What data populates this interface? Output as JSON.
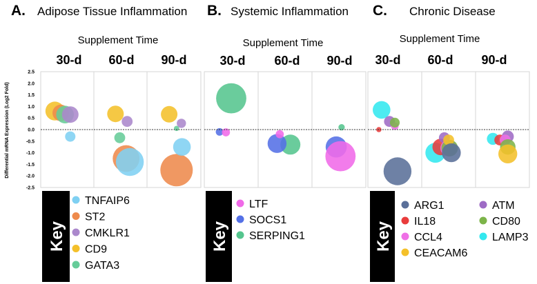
{
  "colors": {
    "TNFAIP6": "#7fd0f2",
    "ST2": "#ee8a4c",
    "CMKLR1": "#ab88cc",
    "CD9": "#f4c02a",
    "GATA3": "#66cc99",
    "LTF": "#f06ae8",
    "SOCS1": "#5470e6",
    "SERPING1": "#55c58e",
    "ARG1": "#5a6f99",
    "IL18": "#e93c3c",
    "CCL4": "#ef70e6",
    "CEACAM6": "#f4c02a",
    "ATM": "#9e6bc5",
    "CD80": "#7cb449",
    "LAMP3": "#33e8ef"
  },
  "key_label": "Key",
  "chart_data": [
    {
      "type": "scatter",
      "panel_letter": "A.",
      "title": "Adipose Tissue Inflammation",
      "xlabel": "Supplement Time",
      "categories": [
        "30-d",
        "60-d",
        "90-d"
      ],
      "ylabel": "Differential mRNA Expression (Log2 Fold)",
      "ylim": [
        -2.5,
        2.5
      ],
      "yticks": [
        "2.5",
        "2.0",
        "1.5",
        "1.0",
        "0.5",
        "0.0",
        "-0.5",
        "-1.0",
        "-1.5",
        "-2.0",
        "-2.5"
      ],
      "legend": [
        "TNFAIP6",
        "ST2",
        "CMKLR1",
        "CD9",
        "GATA3"
      ],
      "series": [
        {
          "name": "CD9",
          "points": [
            {
              "x": "30-d",
              "offset": -0.24,
              "y": 0.8,
              "size": 1.3
            },
            {
              "x": "60-d",
              "offset": -0.1,
              "y": 0.68,
              "size": 1.1
            },
            {
              "x": "90-d",
              "offset": -0.09,
              "y": 0.66,
              "size": 1.1
            }
          ]
        },
        {
          "name": "ST2",
          "points": [
            {
              "x": "30-d",
              "offset": -0.13,
              "y": 0.72,
              "size": 1.1
            },
            {
              "x": "60-d",
              "offset": 0.1,
              "y": -1.25,
              "size": 2.0
            },
            {
              "x": "90-d",
              "offset": 0.05,
              "y": -1.75,
              "size": 2.5
            }
          ]
        },
        {
          "name": "GATA3",
          "points": [
            {
              "x": "30-d",
              "offset": -0.05,
              "y": 0.65,
              "size": 1.2
            },
            {
              "x": "60-d",
              "offset": -0.02,
              "y": -0.35,
              "size": 0.6
            },
            {
              "x": "90-d",
              "offset": 0.05,
              "y": 0.05,
              "size": 0.1
            }
          ]
        },
        {
          "name": "CMKLR1",
          "points": [
            {
              "x": "30-d",
              "offset": 0.05,
              "y": 0.65,
              "size": 1.1
            },
            {
              "x": "60-d",
              "offset": 0.12,
              "y": 0.35,
              "size": 0.6
            },
            {
              "x": "90-d",
              "offset": 0.14,
              "y": 0.27,
              "size": 0.45
            }
          ]
        },
        {
          "name": "TNFAIP6",
          "points": [
            {
              "x": "30-d",
              "offset": 0.05,
              "y": -0.3,
              "size": 0.55
            },
            {
              "x": "60-d",
              "offset": 0.17,
              "y": -1.4,
              "size": 2.1
            },
            {
              "x": "90-d",
              "offset": 0.15,
              "y": -0.75,
              "size": 1.2
            }
          ]
        }
      ]
    },
    {
      "type": "scatter",
      "panel_letter": "B.",
      "title": "Systemic Inflammation",
      "xlabel": "Supplement Time",
      "categories": [
        "30-d",
        "60-d",
        "90-d"
      ],
      "ylim": [
        -2.5,
        2.5
      ],
      "legend": [
        "LTF",
        "SOCS1",
        "SERPING1"
      ],
      "series": [
        {
          "name": "SERPING1",
          "points": [
            {
              "x": "30-d",
              "offset": 0.0,
              "y": 1.35,
              "size": 2.3
            },
            {
              "x": "60-d",
              "offset": 0.1,
              "y": -0.65,
              "size": 1.4
            },
            {
              "x": "90-d",
              "offset": 0.05,
              "y": 0.1,
              "size": 0.2
            }
          ]
        },
        {
          "name": "SOCS1",
          "points": [
            {
              "x": "30-d",
              "offset": -0.22,
              "y": -0.1,
              "size": 0.3
            },
            {
              "x": "60-d",
              "offset": -0.15,
              "y": -0.6,
              "size": 1.3
            },
            {
              "x": "90-d",
              "offset": -0.05,
              "y": -0.75,
              "size": 1.5
            }
          ]
        },
        {
          "name": "LTF",
          "points": [
            {
              "x": "30-d",
              "offset": -0.1,
              "y": -0.12,
              "size": 0.35
            },
            {
              "x": "60-d",
              "offset": -0.1,
              "y": -0.2,
              "size": 0.35
            },
            {
              "x": "90-d",
              "offset": 0.03,
              "y": -1.15,
              "size": 2.3
            }
          ]
        }
      ]
    },
    {
      "type": "scatter",
      "panel_letter": "C.",
      "title": "Chronic Disease",
      "xlabel": "Supplement Time",
      "categories": [
        "30-d",
        "60-d",
        "90-d"
      ],
      "ylim": [
        -2.5,
        2.5
      ],
      "legend": [
        "ARG1",
        "IL18",
        "CCL4",
        "CEACAM6",
        "ATM",
        "CD80",
        "LAMP3"
      ],
      "series": [
        {
          "name": "LAMP3",
          "points": [
            {
              "x": "30-d",
              "offset": -0.25,
              "y": 0.85,
              "size": 1.2
            },
            {
              "x": "60-d",
              "offset": -0.25,
              "y": -1.0,
              "size": 1.4
            },
            {
              "x": "90-d",
              "offset": -0.18,
              "y": -0.4,
              "size": 0.7
            }
          ]
        },
        {
          "name": "IL18",
          "points": [
            {
              "x": "30-d",
              "offset": -0.3,
              "y": 0.0,
              "size": 0.1
            },
            {
              "x": "60-d",
              "offset": -0.15,
              "y": -0.75,
              "size": 1.1
            },
            {
              "x": "90-d",
              "offset": -0.05,
              "y": -0.45,
              "size": 0.6
            }
          ]
        },
        {
          "name": "ATM",
          "points": [
            {
              "x": "30-d",
              "offset": -0.1,
              "y": 0.35,
              "size": 0.6
            },
            {
              "x": "60-d",
              "offset": -0.08,
              "y": -0.35,
              "size": 0.6
            },
            {
              "x": "90-d",
              "offset": 0.1,
              "y": -0.3,
              "size": 0.7
            }
          ]
        },
        {
          "name": "CCL4",
          "points": [
            {
              "x": "30-d",
              "offset": 0.0,
              "y": 0.15,
              "size": 0.3
            },
            {
              "x": "60-d",
              "offset": 0.0,
              "y": -0.8,
              "size": 1.1
            },
            {
              "x": "90-d",
              "offset": 0.05,
              "y": -0.45,
              "size": 0.6
            }
          ]
        },
        {
          "name": "CD80",
          "points": [
            {
              "x": "30-d",
              "offset": 0.0,
              "y": 0.3,
              "size": 0.5
            },
            {
              "x": "60-d",
              "offset": 0.02,
              "y": -0.8,
              "size": 1.1
            },
            {
              "x": "90-d",
              "offset": 0.1,
              "y": -0.75,
              "size": 1.0
            }
          ]
        },
        {
          "name": "CEACAM6",
          "points": [
            {
              "x": "60-d",
              "offset": 0.0,
              "y": -0.45,
              "size": 0.6
            },
            {
              "x": "90-d",
              "offset": 0.1,
              "y": -1.05,
              "size": 1.3
            }
          ]
        },
        {
          "name": "ARG1",
          "points": [
            {
              "x": "30-d",
              "offset": 0.05,
              "y": -1.8,
              "size": 2.1
            },
            {
              "x": "60-d",
              "offset": 0.05,
              "y": -1.0,
              "size": 1.3
            }
          ]
        }
      ]
    }
  ]
}
